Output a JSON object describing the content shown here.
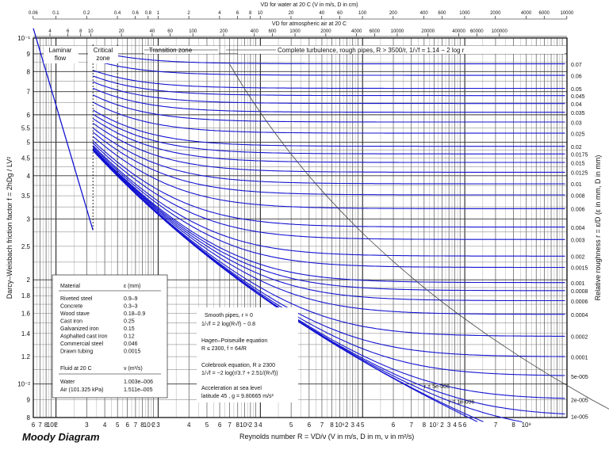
{
  "title": "Moody Diagram",
  "chart_data": {
    "type": "line",
    "x_scale": "log",
    "y_scale": "log",
    "xlim": [
      600,
      100000000
    ],
    "ylim": [
      0.008,
      0.1
    ],
    "xlabel": "Reynolds number  R = VD/ν  (V in m/s, D in m, ν in m²/s)",
    "ylabel": "Darcy–Weisbach friction factor  f = 2hDg / LV²",
    "right_axis_label": "Relative roughness  r = ε/D  (ε in mm, D in mm)",
    "top_axis_1_label": "VD for water at 20 C (V in m/s, D in cm)",
    "top_axis_2_label": "VD for atmospheric air at 20 C",
    "top_axis_1_ticks": [
      "0.06",
      "0.1",
      "0.2",
      "0.4",
      "0.6",
      "0.8",
      "1",
      "2",
      "4",
      "6",
      "8",
      "10",
      "20",
      "40",
      "60",
      "100",
      "200",
      "400",
      "600",
      "1000",
      "2000",
      "4000",
      "6000",
      "10000"
    ],
    "top_axis_2_ticks": [
      "2",
      "4",
      "6",
      "8",
      "10",
      "20",
      "40",
      "60",
      "100",
      "200",
      "400",
      "600",
      "1000",
      "2000",
      "4000",
      "6000",
      "10000",
      "20000",
      "40000",
      "60000",
      "100000"
    ],
    "y_tick_labels": [
      "8",
      "9",
      "10⁻²",
      "1.2",
      "1.4",
      "1.6",
      "1.8",
      "2",
      "2.5",
      "3",
      "3.5",
      "4",
      "4.5",
      "5",
      "5.5",
      "6",
      "7",
      "8",
      "9",
      "10⁻¹"
    ],
    "x_tick_labels": [
      "6",
      "7",
      "8",
      "10³",
      "2",
      "3",
      "4",
      "5",
      "6",
      "7",
      "8",
      "10⁴",
      "2",
      "3",
      "4",
      "5",
      "6",
      "7",
      "8",
      "10⁵",
      "2",
      "3",
      "4",
      "5",
      "6",
      "7",
      "8",
      "10⁶",
      "2",
      "3",
      "4",
      "5",
      "6",
      "7",
      "8",
      "10⁷",
      "2",
      "3",
      "4",
      "5",
      "6",
      "7",
      "8",
      "10⁸"
    ],
    "roughness_labels": [
      "0.07",
      "0.06",
      "0.05",
      "0.045",
      "0.04",
      "0.035",
      "0.03",
      "0.025",
      "0.02",
      "0.0175",
      "0.015",
      "0.0125",
      "0.01",
      "0.008",
      "0.006",
      "0.004",
      "0.003",
      "0.002",
      "0.0015",
      "0.001",
      "0.0008",
      "0.0006",
      "0.0004",
      "0.0002",
      "0.0001",
      "5e-005",
      "2e-005",
      "1e-005"
    ],
    "roughness_values": [
      0.07,
      0.06,
      0.05,
      0.045,
      0.04,
      0.035,
      0.03,
      0.025,
      0.02,
      0.0175,
      0.015,
      0.0125,
      0.01,
      0.008,
      0.006,
      0.004,
      0.003,
      0.002,
      0.0015,
      0.001,
      0.0008,
      0.0006,
      0.0004,
      0.0002,
      0.0001,
      5e-05,
      2e-05,
      1e-05
    ],
    "extra_curve_labels": [
      "r = 5e-006",
      "r = 1e-006"
    ],
    "extra_curve_values": [
      5e-06,
      1e-06
    ],
    "laminar": {
      "x": [
        600,
        2300
      ],
      "y": [
        0.10667,
        0.02783
      ]
    },
    "zone_labels": [
      "Laminar flow",
      "Critical zone",
      "Transition zone",
      "Complete turbulence, rough pipes, R > 3500/r,  1/√f = 1.14 − 2 log r"
    ],
    "line_color": "#1414d2"
  },
  "material_table": {
    "header_material": "Material",
    "header_eps": "ε (mm)",
    "rows": [
      [
        "Riveted steel",
        "0.9–9"
      ],
      [
        "Concrete",
        "0.3–3"
      ],
      [
        "Wood stave",
        "0.18–0.9"
      ],
      [
        "Cast iron",
        "0.25"
      ],
      [
        "Galvanized iron",
        "0.15"
      ],
      [
        "Asphalted cast iron",
        "0.12"
      ],
      [
        "Commercial steel",
        "0.046"
      ],
      [
        "Drawn tubing",
        "0.0015"
      ]
    ],
    "fluid_header": "Fluid at 20 C",
    "fluid_unit": "ν (m²/s)",
    "fluid_rows": [
      [
        "Water",
        "1.003e–006"
      ],
      [
        "Air (101.325 kPa)",
        "1.511e–005"
      ]
    ]
  },
  "equations": {
    "smooth_1": "Smooth pipes, r = 0",
    "smooth_2": "1/√f = 2 log(R√f) − 0.8",
    "hp_1": "Hagen–Poiseuille equation",
    "hp_2": "R ≤ 2300,  f = 64/R",
    "cb_1": "Colebrook equation,  R ≥ 2300",
    "cb_2": "1/√f = −2 log(r/3.7 + 2.51/(R√f))",
    "acc_1": "Acceleration at sea level",
    "acc_2": "latitude 45 ,  g = 9.80665 m/s²"
  }
}
